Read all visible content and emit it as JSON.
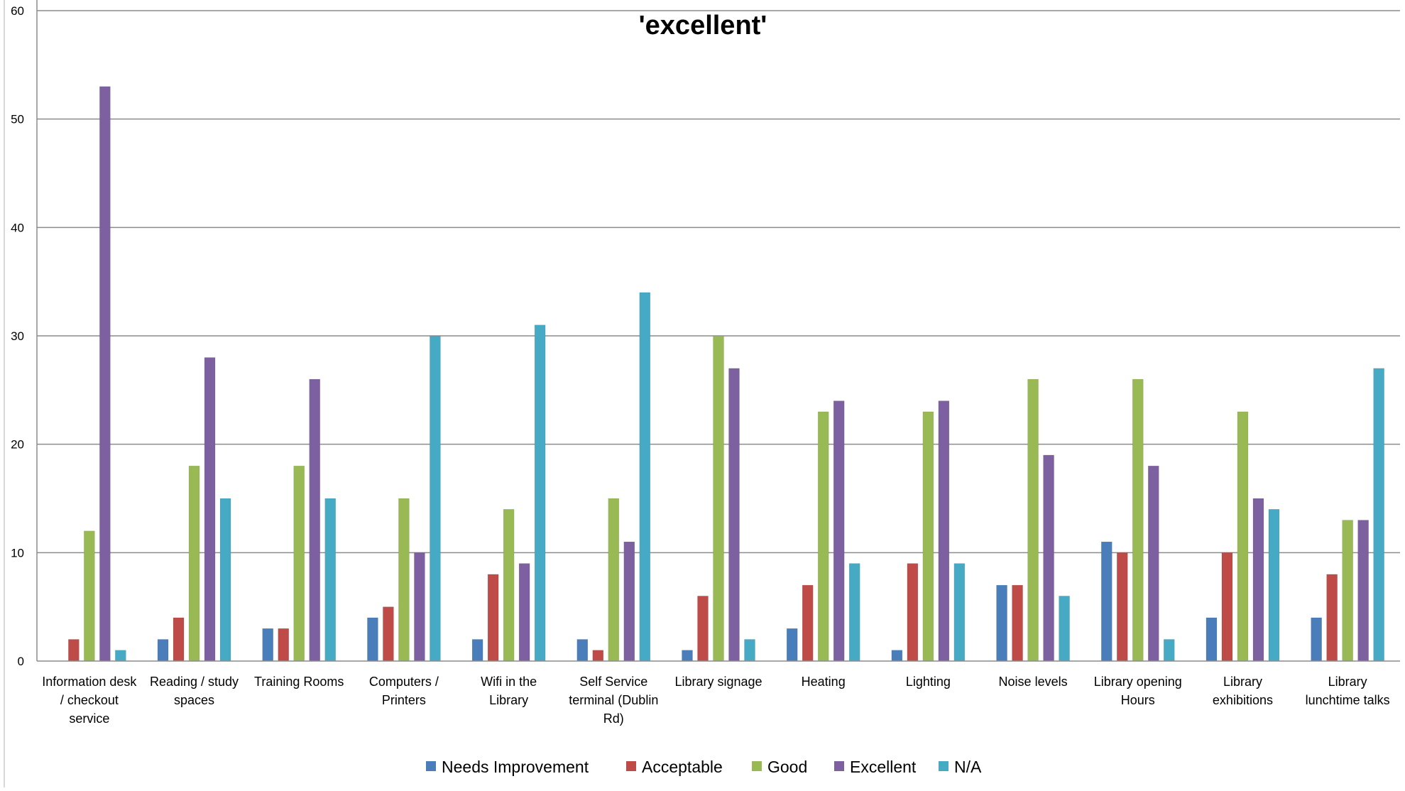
{
  "chart_data": {
    "type": "bar",
    "title": "'excellent'",
    "categories": [
      "Information desk / checkout service",
      "Reading /  study spaces",
      "Training Rooms",
      "Computers / Printers",
      "Wifi in the Library",
      "Self Service terminal (Dublin Rd)",
      "Library signage",
      "Heating",
      "Lighting",
      "Noise levels",
      "Library opening Hours",
      "Library exhibitions",
      "Library lunchtime talks"
    ],
    "category_label_lines": [
      [
        "Information desk",
        "/ checkout",
        "service"
      ],
      [
        "Reading /  study",
        "spaces"
      ],
      [
        "Training Rooms"
      ],
      [
        "Computers /",
        "Printers"
      ],
      [
        "Wifi in the",
        "Library"
      ],
      [
        "Self Service",
        "terminal (Dublin",
        "Rd)"
      ],
      [
        "Library signage"
      ],
      [
        "Heating"
      ],
      [
        "Lighting"
      ],
      [
        "Noise levels"
      ],
      [
        "Library opening",
        "Hours"
      ],
      [
        "Library",
        "exhibitions"
      ],
      [
        "Library",
        "lunchtime talks"
      ]
    ],
    "series": [
      {
        "name": "Needs Improvement",
        "color": "#4a7ebb",
        "values": [
          0,
          2,
          3,
          4,
          2,
          2,
          1,
          3,
          1,
          7,
          11,
          4,
          4
        ]
      },
      {
        "name": "Acceptable",
        "color": "#be4b48",
        "values": [
          2,
          4,
          3,
          5,
          8,
          1,
          6,
          7,
          9,
          7,
          10,
          10,
          8
        ]
      },
      {
        "name": "Good",
        "color": "#98b954",
        "values": [
          12,
          18,
          18,
          15,
          14,
          15,
          30,
          23,
          23,
          26,
          26,
          23,
          13
        ]
      },
      {
        "name": "Excellent",
        "color": "#7d60a0",
        "values": [
          53,
          28,
          26,
          10,
          9,
          11,
          27,
          24,
          24,
          19,
          18,
          15,
          13
        ]
      },
      {
        "name": "N/A",
        "color": "#46aac5",
        "values": [
          1,
          15,
          15,
          30,
          31,
          34,
          2,
          9,
          9,
          6,
          2,
          14,
          27
        ]
      }
    ],
    "y_ticks": [
      "0",
      "10",
      "20",
      "30",
      "40",
      "50",
      "60"
    ],
    "ylim": [
      0,
      60
    ],
    "grid": true,
    "legend_position": "bottom"
  }
}
